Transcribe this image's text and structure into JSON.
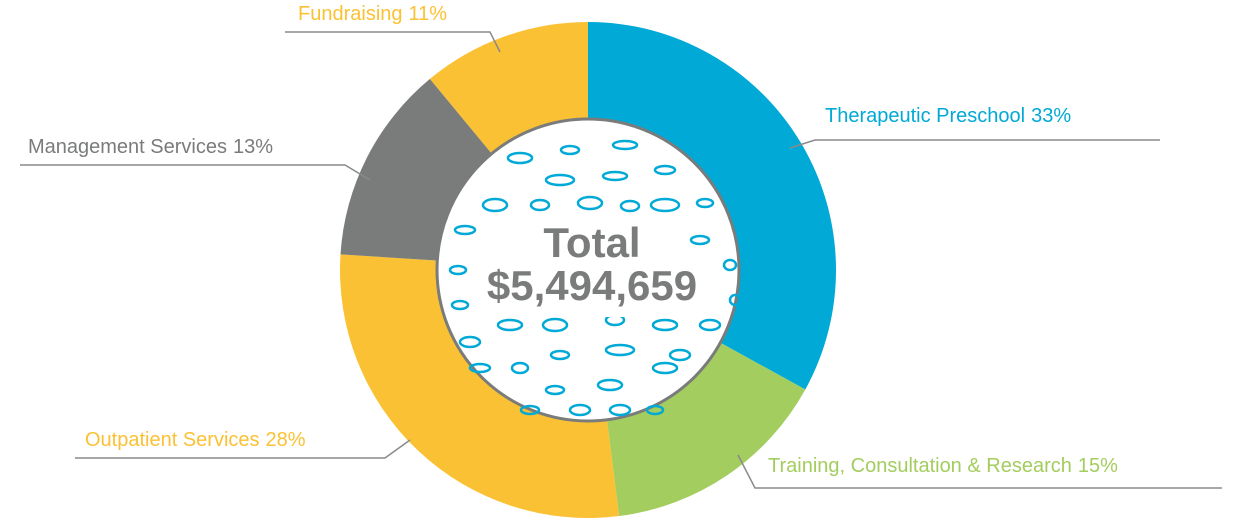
{
  "chart_data": {
    "type": "donut",
    "categories": [
      "Therapeutic Preschool",
      "Training, Consultation & Research",
      "Outpatient Services",
      "Management Services",
      "Fundraising"
    ],
    "values": [
      33,
      15,
      28,
      13,
      11
    ],
    "value_labels": [
      "33%",
      "15%",
      "28%",
      "13%",
      "11%"
    ],
    "colors": [
      "#00a9d6",
      "#a3cd5e",
      "#fbc134",
      "#7a7c7b",
      "#fbc134"
    ],
    "center_title": "Total",
    "center_value": "$5,494,659"
  }
}
